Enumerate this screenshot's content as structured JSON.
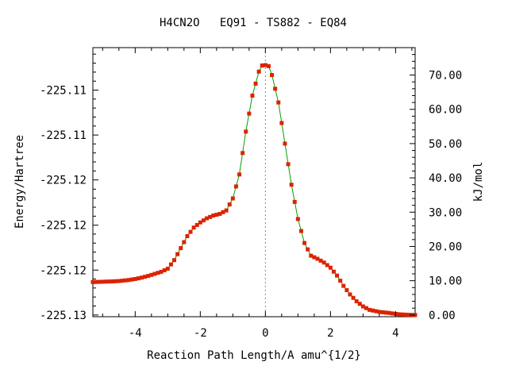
{
  "chart_data": {
    "type": "line",
    "title": "H4CN2O   EQ91 - TS882 - EQ84",
    "xlabel": "Reaction Path Length/A amu^{1/2}",
    "ylabel_left": "Energy/Hartree",
    "ylabel_right": "kJ/mol",
    "xlim": [
      -5.3,
      4.6
    ],
    "ylim_right_kj": [
      -0.5,
      78.0
    ],
    "x_ticks": [
      -4,
      -2,
      0,
      2,
      4
    ],
    "x_tick_labels": [
      "-4",
      "-2",
      "0",
      "2",
      "4"
    ],
    "y_right_ticks": [
      0,
      10,
      20,
      30,
      40,
      50,
      60,
      70
    ],
    "y_right_tick_labels": [
      "0.00",
      "10.00",
      "20.00",
      "30.00",
      "40.00",
      "50.00",
      "60.00",
      "70.00"
    ],
    "y_left_tick_kj": [
      0.0,
      13.1,
      26.2,
      39.4,
      52.5,
      65.6
    ],
    "y_left_tick_labels": [
      "-225.13",
      "-225.12",
      "-225.12",
      "-225.12",
      "-225.11",
      "-225.11"
    ],
    "ts_marker_x": 0.0,
    "series": [
      {
        "line_color": "#00a000",
        "marker_color": "#dd2200",
        "x": [
          -5.3,
          -5.0,
          -4.7,
          -4.5,
          -4.2,
          -4.0,
          -3.8,
          -3.6,
          -3.4,
          -3.2,
          -3.0,
          -2.8,
          -2.6,
          -2.4,
          -2.2,
          -2.0,
          -1.8,
          -1.6,
          -1.4,
          -1.2,
          -1.0,
          -0.8,
          -0.6,
          -0.4,
          -0.2,
          -0.1,
          0.0,
          0.1,
          0.2,
          0.4,
          0.6,
          0.8,
          1.0,
          1.2,
          1.4,
          1.6,
          1.8,
          2.0,
          2.2,
          2.4,
          2.6,
          2.8,
          3.0,
          3.2,
          3.5,
          3.8,
          4.0,
          4.2,
          4.4,
          4.6
        ],
        "y": [
          9.6,
          9.7,
          9.8,
          9.9,
          10.2,
          10.5,
          10.9,
          11.4,
          12.0,
          12.6,
          13.5,
          16.0,
          19.5,
          23.0,
          25.5,
          27.0,
          28.2,
          29.0,
          29.5,
          30.5,
          34.0,
          41.0,
          53.5,
          64.0,
          71.0,
          72.8,
          72.9,
          72.6,
          70.0,
          62.0,
          50.0,
          38.0,
          28.0,
          21.0,
          17.3,
          16.4,
          15.3,
          13.8,
          11.5,
          8.5,
          6.0,
          4.0,
          2.5,
          1.5,
          0.9,
          0.6,
          0.3,
          0.15,
          0.05,
          0.0
        ]
      }
    ],
    "grid": false,
    "legend": "none"
  }
}
